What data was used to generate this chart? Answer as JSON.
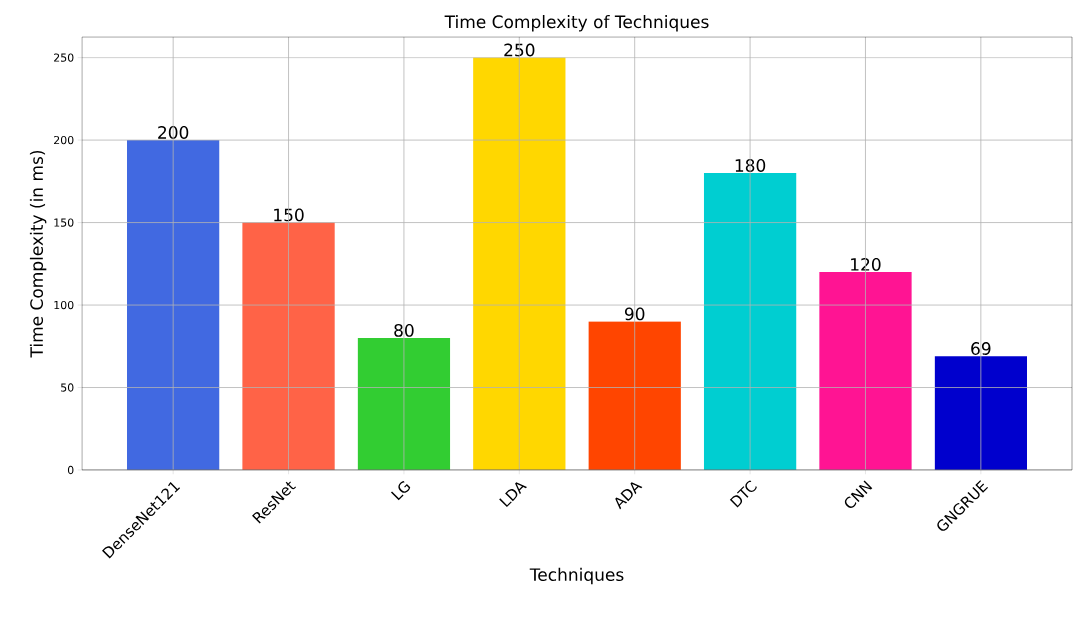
{
  "chart_data": {
    "type": "bar",
    "title": "Time Complexity of Techniques",
    "xlabel": "Techniques",
    "ylabel": "Time Complexity (in ms)",
    "categories": [
      "DenseNet121",
      "ResNet",
      "LG",
      "LDA",
      "ADA",
      "DTC",
      "CNN",
      "GNGRUE"
    ],
    "values": [
      200,
      150,
      80,
      250,
      90,
      180,
      120,
      69
    ],
    "colors": [
      "#4169e1",
      "#ff6347",
      "#32cd32",
      "#ffd700",
      "#ff4500",
      "#00ced1",
      "#ff1493",
      "#0000cd"
    ],
    "ylim": [
      0,
      262.5
    ],
    "yticks": [
      0,
      50,
      100,
      150,
      200,
      250
    ],
    "grid": true,
    "data_labels": true
  }
}
